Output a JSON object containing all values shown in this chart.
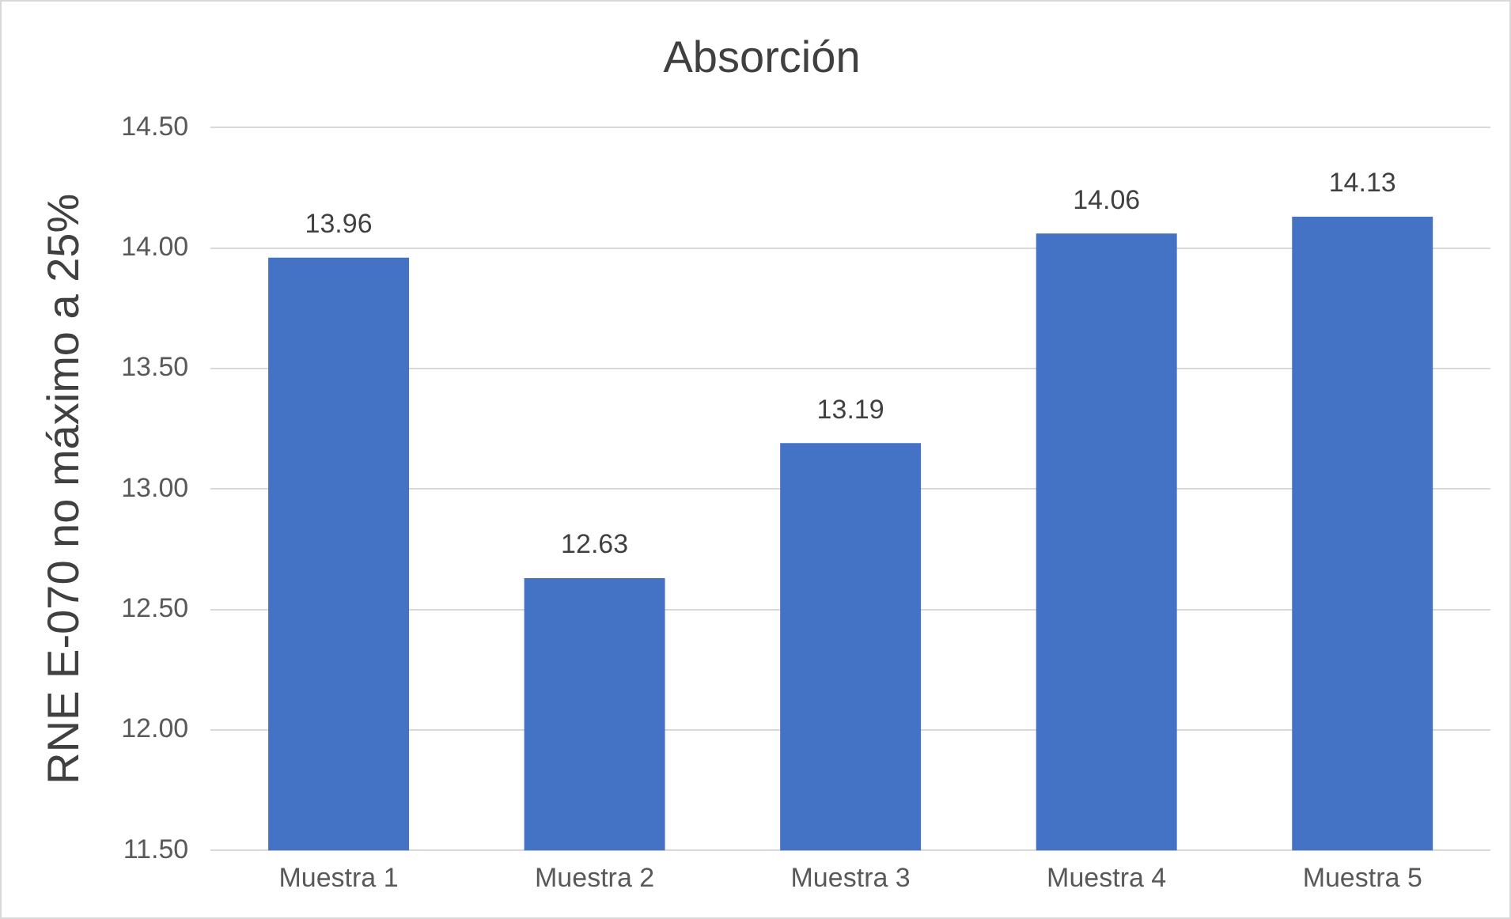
{
  "chart_data": {
    "type": "bar",
    "title": "Absorción",
    "ylabel": "RNE E-070 no máximo a 25%",
    "categories": [
      "Muestra 1",
      "Muestra 2",
      "Muestra 3",
      "Muestra 4",
      "Muestra 5"
    ],
    "values": [
      13.96,
      12.63,
      13.19,
      14.06,
      14.13
    ],
    "color": "#4472c4",
    "ylim": [
      11.5,
      14.5
    ],
    "yticks": [
      {
        "value": 11.5,
        "label": "11.50"
      },
      {
        "value": 12,
        "label": "12.00"
      },
      {
        "value": 12.5,
        "label": "12.50"
      },
      {
        "value": 13,
        "label": "13.00"
      },
      {
        "value": 13.5,
        "label": "13.50"
      },
      {
        "value": 14,
        "label": "14.00"
      },
      {
        "value": 14.5,
        "label": "14.50"
      }
    ],
    "grid": "y",
    "data_labels": true
  }
}
